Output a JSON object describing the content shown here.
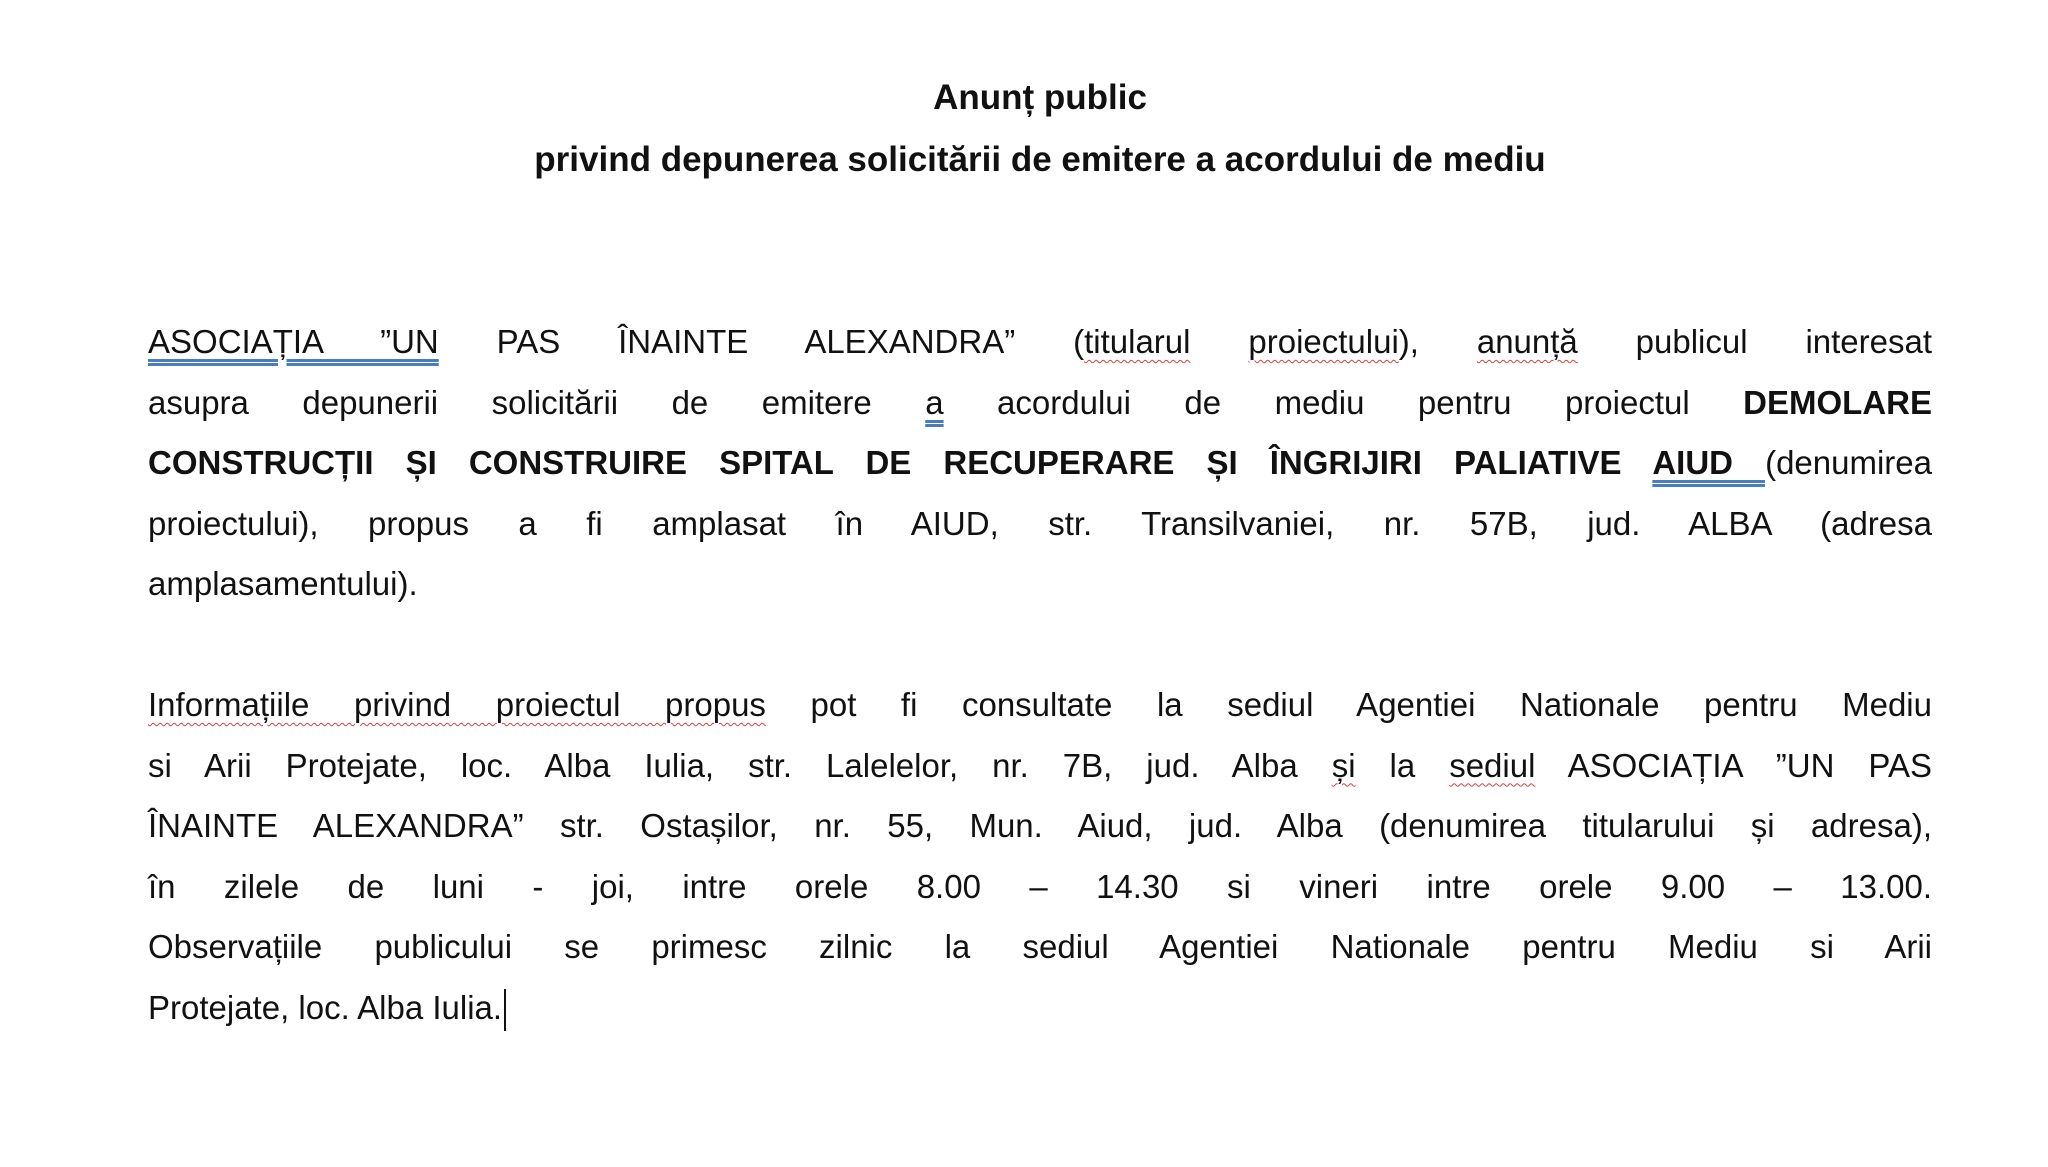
{
  "title": {
    "line1": "Anunț public",
    "line2": "privind depunerea solicitării de emitere a acordului de mediu"
  },
  "paragraphs": [
    {
      "lines": [
        [
          {
            "t": "ASOCIAȚIA ”UN",
            "f": "g"
          },
          {
            "t": " PAS ÎNAINTE ALEXANDRA” (",
            "f": ""
          },
          {
            "t": "titularul",
            "f": "s"
          },
          {
            "t": " ",
            "f": ""
          },
          {
            "t": "proiectului",
            "f": "s"
          },
          {
            "t": "), ",
            "f": ""
          },
          {
            "t": "anunță",
            "f": "s"
          },
          {
            "t": " publicul interesat",
            "f": ""
          }
        ],
        [
          {
            "t": "asupra depunerii solicitării de emitere ",
            "f": ""
          },
          {
            "t": "a",
            "f": "g"
          },
          {
            "t": " acordului de mediu pentru proiectul ",
            "f": ""
          },
          {
            "t": "DEMOLARE",
            "f": "b"
          }
        ],
        [
          {
            "t": "CONSTRUCȚII ȘI CONSTRUIRE SPITAL DE RECUPERARE ȘI ÎNGRIJIRI PALIATIVE ",
            "f": "b"
          },
          {
            "t": "AIUD ",
            "f": "b g"
          },
          {
            "t": "(denumirea",
            "f": ""
          }
        ],
        [
          {
            "t": "proiectului), propus a fi amplasat în AIUD, str. Transilvaniei, nr. 57B, jud. ALBA (adresa",
            "f": ""
          }
        ],
        [
          {
            "t": "amplasamentului).",
            "f": ""
          }
        ]
      ]
    },
    {
      "lines": [
        [
          {
            "t": "Informațiile privind proiectul propus",
            "f": "s"
          },
          {
            "t": " pot fi consultate la sediul Agentiei Nationale pentru Mediu",
            "f": ""
          }
        ],
        [
          {
            "t": "si Arii Protejate, loc. Alba Iulia, str. Lalelelor, nr. 7B, jud. Alba ",
            "f": ""
          },
          {
            "t": "și",
            "f": "s"
          },
          {
            "t": " la ",
            "f": ""
          },
          {
            "t": "sediul",
            "f": "s"
          },
          {
            "t": " ASOCIAȚIA ”UN PAS",
            "f": ""
          }
        ],
        [
          {
            "t": "ÎNAINTE ALEXANDRA” str. Ostașilor, nr. 55, Mun. Aiud, jud. Alba (denumirea titularului și adresa),",
            "f": ""
          }
        ],
        [
          {
            "t": "în zilele de luni - joi, intre orele 8.00 – 14.30 si vineri intre orele 9.00 – 13.00.",
            "f": ""
          }
        ],
        [
          {
            "t": "Observațiile publicului se primesc zilnic la sediul Agentiei Nationale pentru Mediu si Arii",
            "f": ""
          }
        ],
        [
          {
            "t": "Protejate, loc. Alba Iulia.",
            "f": ""
          }
        ]
      ]
    }
  ]
}
